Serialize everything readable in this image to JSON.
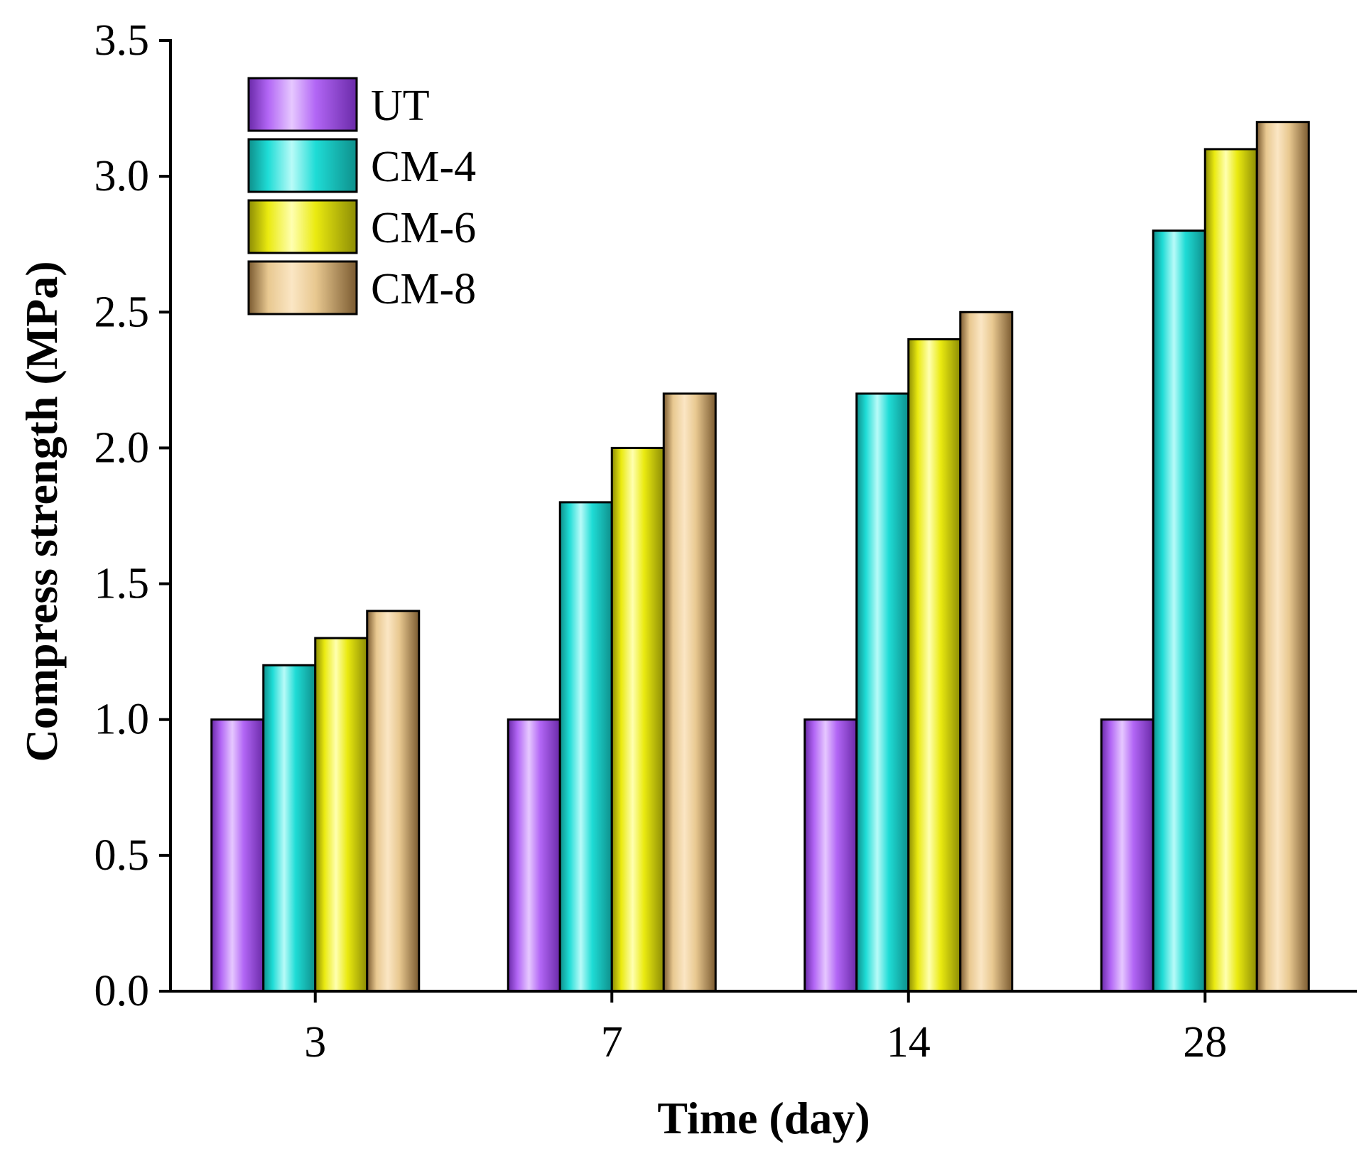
{
  "chart_data": {
    "type": "bar",
    "title": "",
    "xlabel": "Time (day)",
    "ylabel": "Compress strength (MPa)",
    "categories": [
      "3",
      "7",
      "14",
      "28"
    ],
    "ylim": [
      0.0,
      3.5
    ],
    "yticks": [
      "0.0",
      "0.5",
      "1.0",
      "1.5",
      "2.0",
      "2.5",
      "3.0",
      "3.5"
    ],
    "ytick_values": [
      0.0,
      0.5,
      1.0,
      1.5,
      2.0,
      2.5,
      3.0,
      3.5
    ],
    "grid": false,
    "legend_position": "top-left",
    "series": [
      {
        "name": "UT",
        "values": [
          1.0,
          1.0,
          1.0,
          1.0
        ],
        "color": "#b266f5",
        "dark": "#6a2aa8",
        "light": "#e6c8ff"
      },
      {
        "name": "CM-4",
        "values": [
          1.2,
          1.8,
          2.2,
          2.8
        ],
        "color": "#1fdcd6",
        "dark": "#0e8f8b",
        "light": "#b8fbf8"
      },
      {
        "name": "CM-6",
        "values": [
          1.3,
          2.0,
          2.4,
          3.1
        ],
        "color": "#eaea10",
        "dark": "#8c8c05",
        "light": "#ffffb0"
      },
      {
        "name": "CM-8",
        "values": [
          1.4,
          2.2,
          2.5,
          3.2
        ],
        "color": "#e8c890",
        "dark": "#7a5a30",
        "light": "#fbe6c4"
      }
    ]
  }
}
